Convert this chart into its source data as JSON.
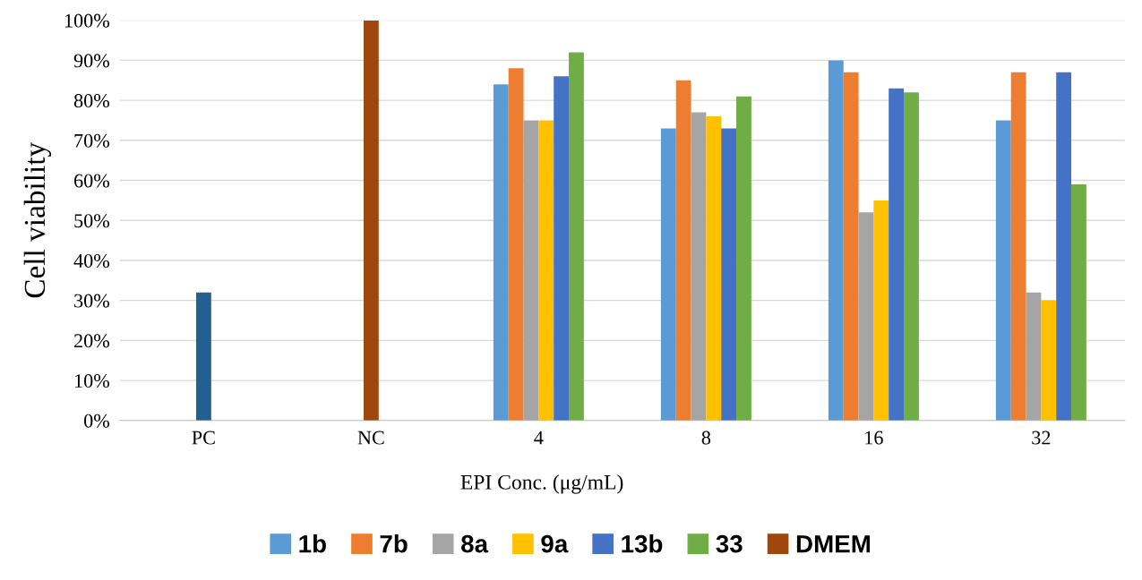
{
  "chart_data": {
    "type": "bar",
    "xlabel": "EPI Conc. (μg/mL)",
    "ylabel": "Cell viability",
    "categories": [
      "PC",
      "NC",
      "4",
      "8",
      "16",
      "32"
    ],
    "series": [
      {
        "name": "1b",
        "color": "#5b9bd5",
        "values": [
          null,
          null,
          84,
          73,
          90,
          75
        ]
      },
      {
        "name": "7b",
        "color": "#ed7d31",
        "values": [
          null,
          null,
          88,
          85,
          87,
          87
        ]
      },
      {
        "name": "8a",
        "color": "#a5a5a5",
        "values": [
          null,
          null,
          75,
          77,
          52,
          32
        ]
      },
      {
        "name": "9a",
        "color": "#ffc000",
        "values": [
          null,
          null,
          75,
          76,
          55,
          30
        ]
      },
      {
        "name": "13b",
        "color": "#4472c4",
        "values": [
          null,
          null,
          86,
          73,
          83,
          87
        ]
      },
      {
        "name": "33",
        "color": "#70ad47",
        "values": [
          null,
          null,
          92,
          81,
          82,
          59
        ]
      },
      {
        "color": "#255e91",
        "values": [
          32,
          null,
          null,
          null,
          null,
          null
        ]
      },
      {
        "name": "DMEM",
        "color": "#9e480e",
        "values": [
          null,
          100,
          null,
          null,
          null,
          null
        ]
      }
    ],
    "ylim": [
      0,
      100
    ],
    "yticks": [
      {
        "value": 0,
        "label": "0%"
      },
      {
        "value": 10,
        "label": "10%"
      },
      {
        "value": 20,
        "label": "20%"
      },
      {
        "value": 30,
        "label": "30%"
      },
      {
        "value": 40,
        "label": "40%"
      },
      {
        "value": 50,
        "label": "50%"
      },
      {
        "value": 60,
        "label": "60%"
      },
      {
        "value": 70,
        "label": "70%"
      },
      {
        "value": 80,
        "label": "80%"
      },
      {
        "value": 90,
        "label": "90%"
      },
      {
        "value": 100,
        "label": "100%"
      }
    ],
    "grid": "y",
    "legend": "bottom"
  }
}
